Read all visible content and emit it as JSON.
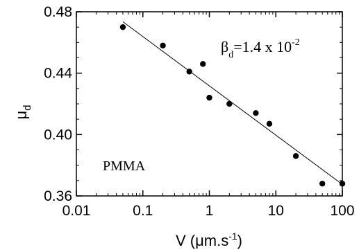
{
  "chart_data": {
    "type": "scatter",
    "x_scale": "log",
    "xlim": [
      0.01,
      100
    ],
    "ylim": [
      0.36,
      0.48
    ],
    "xticks": [
      "0.01",
      "0.1",
      "1",
      "10",
      "100"
    ],
    "yticks": [
      "0.36",
      "0.40",
      "0.44",
      "0.48"
    ],
    "xlabel": {
      "main": "V (μm.s",
      "sup": "-1",
      "end": ")"
    },
    "ylabel": {
      "main": "μ",
      "sub": "d"
    },
    "series": [
      {
        "x": [
          0.05,
          0.2,
          0.5,
          0.8,
          1.0,
          2.0,
          5.0,
          8.0,
          20.0,
          50.0,
          100.0
        ],
        "y": [
          0.47,
          0.458,
          0.441,
          0.446,
          0.424,
          0.42,
          0.414,
          0.407,
          0.386,
          0.368,
          0.368
        ]
      }
    ],
    "fit_line": {
      "x": [
        0.05,
        100.0
      ],
      "y": [
        0.4735,
        0.3675
      ]
    },
    "annotations": {
      "sample": "PMMA",
      "beta": {
        "symbol": "β",
        "sub": "d",
        "text": "=1.4 x 10",
        "sup": "-2"
      }
    },
    "grid": false,
    "colors": {
      "points": "#000000",
      "line": "#000000",
      "axes": "#000000"
    }
  }
}
